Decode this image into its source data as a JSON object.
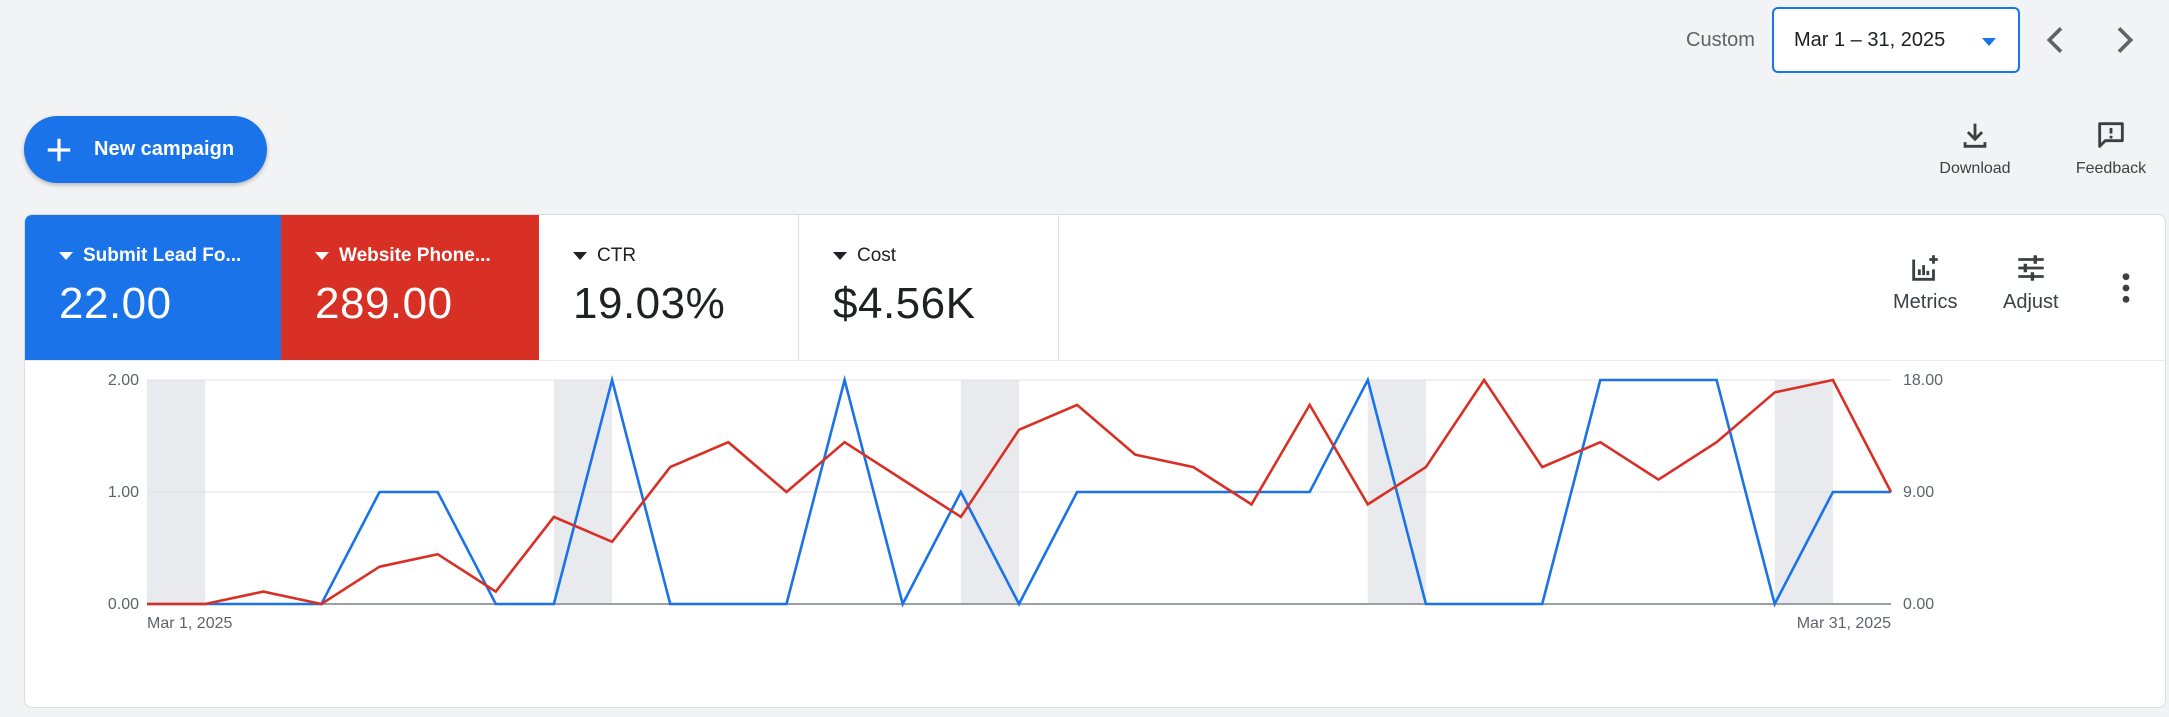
{
  "topbar": {
    "range_label": "Custom",
    "date_range": "Mar 1 – 31, 2025",
    "prev_icon": "chevron-left-icon",
    "next_icon": "chevron-right-icon"
  },
  "actions": {
    "new_campaign": "New campaign",
    "download": "Download",
    "feedback": "Feedback"
  },
  "metrics": [
    {
      "label": "Submit Lead Fo...",
      "value": "22.00",
      "color": "#1a73e8"
    },
    {
      "label": "Website Phone...",
      "value": "289.00",
      "color": "#d93025"
    },
    {
      "label": "CTR",
      "value": "19.03%"
    },
    {
      "label": "Cost",
      "value": "$4.56K"
    }
  ],
  "controls": {
    "metrics": "Metrics",
    "adjust": "Adjust"
  },
  "chart_data": {
    "type": "line",
    "x_start_label": "Mar 1, 2025",
    "x_end_label": "Mar 31, 2025",
    "x": [
      "Mar 1",
      "Mar 2",
      "Mar 3",
      "Mar 4",
      "Mar 5",
      "Mar 6",
      "Mar 7",
      "Mar 8",
      "Mar 9",
      "Mar 10",
      "Mar 11",
      "Mar 12",
      "Mar 13",
      "Mar 14",
      "Mar 15",
      "Mar 16",
      "Mar 17",
      "Mar 18",
      "Mar 19",
      "Mar 20",
      "Mar 21",
      "Mar 22",
      "Mar 23",
      "Mar 24",
      "Mar 25",
      "Mar 26",
      "Mar 27",
      "Mar 28",
      "Mar 29",
      "Mar 30",
      "Mar 31"
    ],
    "left_axis": {
      "ticks": [
        "0.00",
        "1.00",
        "2.00"
      ],
      "ylim": [
        0,
        2
      ]
    },
    "right_axis": {
      "ticks": [
        "0.00",
        "9.00",
        "18.00"
      ],
      "ylim": [
        0,
        18
      ]
    },
    "weekend_bands": [
      [
        "Mar 1",
        "Mar 2"
      ],
      [
        "Mar 8",
        "Mar 9"
      ],
      [
        "Mar 15",
        "Mar 16"
      ],
      [
        "Mar 22",
        "Mar 23"
      ],
      [
        "Mar 29",
        "Mar 30"
      ]
    ],
    "series": [
      {
        "axis": "left",
        "color": "#1a73e8",
        "values": [
          0,
          0,
          0,
          0,
          1,
          1,
          0,
          0,
          2,
          0,
          0,
          0,
          2,
          0,
          1,
          0,
          1,
          1,
          1,
          1,
          1,
          2,
          0,
          0,
          0,
          2,
          2,
          2,
          0,
          1,
          1
        ]
      },
      {
        "axis": "right",
        "color": "#d93025",
        "values": [
          0,
          0,
          1,
          0,
          3,
          4,
          1,
          7,
          5,
          11,
          13,
          9,
          13,
          10,
          7,
          14,
          16,
          12,
          11,
          8,
          16,
          8,
          11,
          18,
          11,
          13,
          10,
          13,
          17,
          18,
          9
        ]
      }
    ]
  }
}
